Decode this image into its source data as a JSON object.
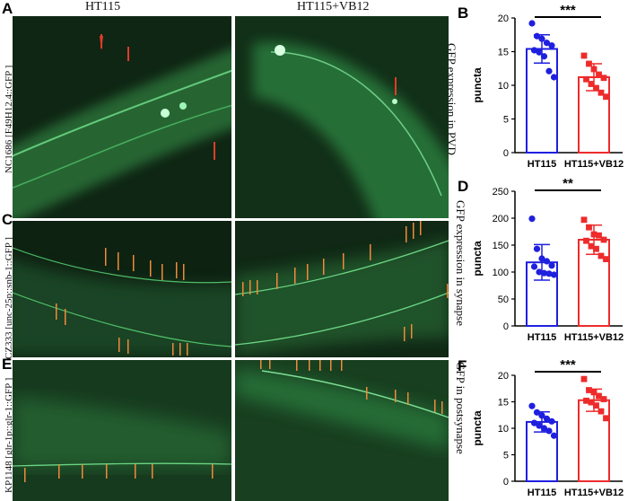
{
  "column_headers": [
    "HT115",
    "HT115+VB12"
  ],
  "panel_letters": [
    "A",
    "B",
    "C",
    "D",
    "E",
    "F"
  ],
  "strain_labels": [
    "NC1686 [F49H12.4::GFP ]",
    "CZ333 [unc-25p::snb-1::GFP ]",
    "KP1148 [glr-1p::glr-1::GFP ]"
  ],
  "side_labels": [
    "GFP expression in PVD",
    "GFP expression in synapse",
    "GFP in postsynapse"
  ],
  "colors": {
    "ht115": "#1f1fe0",
    "vb12": "#ee2b2b",
    "fluorescence": "#3fe06a"
  },
  "chart_data": [
    {
      "type": "bar",
      "panel": "B",
      "categories": [
        "HT115",
        "HT115+VB12"
      ],
      "ylabel": "puncta",
      "ylim": [
        0,
        20
      ],
      "yticks": [
        0,
        5,
        10,
        15,
        20
      ],
      "significance": "***",
      "series": [
        {
          "values": [
            15.4,
            11.2
          ],
          "errors": [
            2.1,
            2.0
          ]
        }
      ],
      "points": [
        [
          19.2,
          17.3,
          16.9,
          16.3,
          15.9,
          15.2,
          14.9,
          14.3,
          12.1,
          11.2
        ],
        [
          14.4,
          13.2,
          12.4,
          11.6,
          11.1,
          10.9,
          10.2,
          9.6,
          8.9,
          8.3
        ]
      ]
    },
    {
      "type": "bar",
      "panel": "D",
      "categories": [
        "HT115",
        "HT115+VB12"
      ],
      "ylabel": "puncta",
      "ylim": [
        0,
        250
      ],
      "yticks": [
        0,
        50,
        100,
        150,
        200,
        250
      ],
      "significance": "**",
      "series": [
        {
          "values": [
            118,
            160
          ],
          "errors": [
            33,
            27
          ]
        }
      ],
      "points": [
        [
          199,
          143,
          125,
          120,
          112,
          110,
          100,
          98,
          97,
          95
        ],
        [
          197,
          183,
          170,
          168,
          160,
          158,
          148,
          143,
          130,
          124
        ]
      ]
    },
    {
      "type": "bar",
      "panel": "F",
      "categories": [
        "HT115",
        "HT115+VB12"
      ],
      "ylabel": "puncta",
      "ylim": [
        0,
        20
      ],
      "yticks": [
        0,
        5,
        10,
        15,
        20
      ],
      "significance": "***",
      "series": [
        {
          "values": [
            11.2,
            15.3
          ],
          "errors": [
            1.9,
            2.1
          ]
        }
      ],
      "points": [
        [
          14.2,
          13.0,
          12.4,
          11.8,
          11.3,
          11.0,
          10.5,
          10.0,
          9.5,
          8.6
        ],
        [
          19.3,
          17.2,
          16.8,
          16.1,
          15.5,
          15.2,
          14.9,
          14.3,
          13.2,
          11.9
        ]
      ]
    }
  ]
}
